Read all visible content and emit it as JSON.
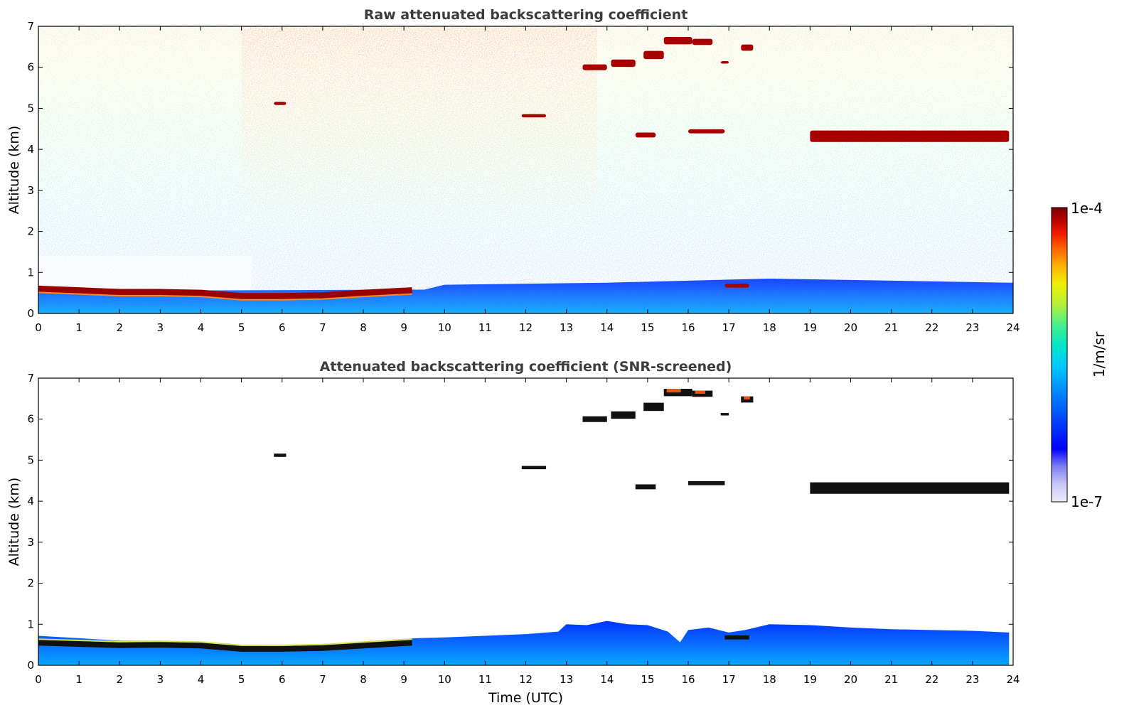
{
  "chart_data": [
    {
      "type": "heatmap",
      "title": "Raw attenuated backscattering coefficient",
      "xlabel": "",
      "ylabel": "Altitude (km)",
      "xlim": [
        0,
        24
      ],
      "ylim": [
        0,
        7
      ],
      "xticks": [
        "0",
        "1",
        "2",
        "3",
        "4",
        "5",
        "6",
        "7",
        "8",
        "9",
        "10",
        "11",
        "12",
        "13",
        "14",
        "15",
        "16",
        "17",
        "18",
        "19",
        "20",
        "21",
        "22",
        "23",
        "24"
      ],
      "yticks": [
        "0",
        "1",
        "2",
        "3",
        "4",
        "5",
        "6",
        "7"
      ],
      "layers": [
        {
          "kind": "boundary_layer_top",
          "t": [
            0,
            1,
            2,
            3,
            4,
            5,
            6,
            7,
            8,
            9.2
          ],
          "alt": [
            0.6,
            0.56,
            0.52,
            0.52,
            0.5,
            0.42,
            0.42,
            0.44,
            0.5,
            0.56
          ]
        },
        {
          "kind": "cloud",
          "t": [
            5.8,
            6.1
          ],
          "alt": 5.12,
          "thickness": 0.08
        },
        {
          "kind": "cloud",
          "t": [
            11.9,
            12.5
          ],
          "alt": 4.82,
          "thickness": 0.08
        },
        {
          "kind": "cloud",
          "t": [
            13.4,
            14.0
          ],
          "alt": 6.0,
          "thickness": 0.14
        },
        {
          "kind": "cloud",
          "t": [
            14.1,
            14.7
          ],
          "alt": 6.1,
          "thickness": 0.18
        },
        {
          "kind": "cloud",
          "t": [
            14.9,
            15.4
          ],
          "alt": 6.3,
          "thickness": 0.2
        },
        {
          "kind": "cloud",
          "t": [
            15.4,
            16.1
          ],
          "alt": 6.65,
          "thickness": 0.18
        },
        {
          "kind": "cloud",
          "t": [
            16.1,
            16.6
          ],
          "alt": 6.62,
          "thickness": 0.15
        },
        {
          "kind": "cloud",
          "t": [
            17.3,
            17.6
          ],
          "alt": 6.48,
          "thickness": 0.15
        },
        {
          "kind": "cloud",
          "t": [
            16.8,
            17.0
          ],
          "alt": 6.12,
          "thickness": 0.06
        },
        {
          "kind": "cloud",
          "t": [
            14.7,
            15.2
          ],
          "alt": 4.35,
          "thickness": 0.12
        },
        {
          "kind": "cloud",
          "t": [
            16.0,
            16.9
          ],
          "alt": 4.44,
          "thickness": 0.1
        },
        {
          "kind": "cloud",
          "t": [
            16.9,
            17.5
          ],
          "alt": 0.68,
          "thickness": 0.1
        },
        {
          "kind": "cloud",
          "t": [
            19.0,
            23.9
          ],
          "alt": 4.32,
          "thickness": 0.28
        }
      ]
    },
    {
      "type": "heatmap",
      "title": "Attenuated backscattering coefficient (SNR-screened)",
      "xlabel": "Time (UTC)",
      "ylabel": "Altitude (km)",
      "xlim": [
        0,
        24
      ],
      "ylim": [
        0,
        7
      ],
      "xticks": [
        "0",
        "1",
        "2",
        "3",
        "4",
        "5",
        "6",
        "7",
        "8",
        "9",
        "10",
        "11",
        "12",
        "13",
        "14",
        "15",
        "16",
        "17",
        "18",
        "19",
        "20",
        "21",
        "22",
        "23",
        "24"
      ],
      "yticks": [
        "0",
        "1",
        "2",
        "3",
        "4",
        "5",
        "6",
        "7"
      ],
      "boundary_layer_top": {
        "t": [
          0,
          1,
          2,
          3,
          4,
          5,
          6,
          7,
          8,
          9.3,
          10,
          11,
          12,
          12.8,
          13.0,
          13.5,
          14.0,
          14.5,
          15.0,
          15.5,
          15.8,
          16.0,
          16.5,
          17.0,
          17.4,
          18.0,
          19,
          20,
          21,
          22,
          23,
          23.9
        ],
        "alt": [
          0.72,
          0.66,
          0.6,
          0.6,
          0.56,
          0.48,
          0.46,
          0.5,
          0.58,
          0.66,
          0.68,
          0.72,
          0.76,
          0.82,
          1.0,
          0.98,
          1.08,
          1.0,
          0.98,
          0.82,
          0.56,
          0.86,
          0.92,
          0.8,
          0.86,
          1.0,
          0.98,
          0.92,
          0.88,
          0.86,
          0.84,
          0.8
        ]
      },
      "dark_band": {
        "t": [
          0,
          1,
          2,
          3,
          4,
          5,
          6,
          7,
          8,
          9.2
        ],
        "alt": [
          0.55,
          0.52,
          0.49,
          0.5,
          0.48,
          0.4,
          0.4,
          0.42,
          0.48,
          0.55
        ]
      }
    }
  ],
  "colorbar": {
    "label": "1/m/sr",
    "max_label": "1e-4",
    "min_label": "1e-7",
    "scale": "log",
    "colormap": [
      "#ecebfa",
      "#c8c8f5",
      "#7f7ff5",
      "#0000ff",
      "#0046ff",
      "#008cff",
      "#00c8ff",
      "#00e6c8",
      "#46f08c",
      "#b4f03c",
      "#f0f000",
      "#ffb400",
      "#ff6400",
      "#f01e00",
      "#b40000",
      "#780000"
    ]
  }
}
